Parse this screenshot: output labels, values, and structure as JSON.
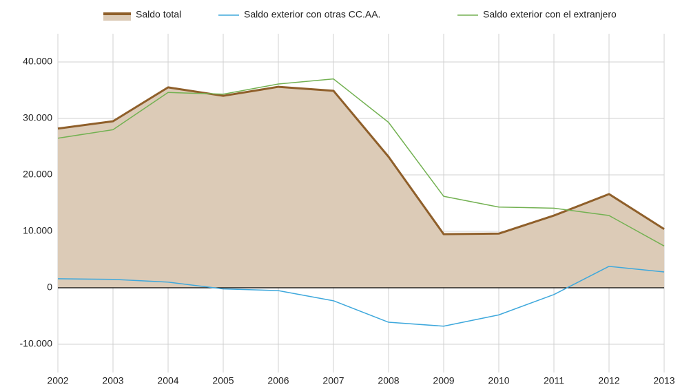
{
  "chart_data": {
    "type": "line",
    "categories": [
      "2002",
      "2003",
      "2004",
      "2005",
      "2006",
      "2007",
      "2008",
      "2009",
      "2010",
      "2011",
      "2012",
      "2013"
    ],
    "series": [
      {
        "name": "Saldo total",
        "color": "#8f5f2a",
        "fill": "#dccbb7",
        "values": [
          28200,
          29500,
          35500,
          34000,
          35600,
          34900,
          23200,
          9500,
          9600,
          12800,
          16600,
          10400
        ]
      },
      {
        "name": "Saldo exterior con otras CC.AA.",
        "color": "#3ea8dc",
        "values": [
          1600,
          1500,
          1000,
          -200,
          -500,
          -2300,
          -6100,
          -6800,
          -4800,
          -1200,
          3800,
          2800
        ]
      },
      {
        "name": "Saldo exterior con el extranjero",
        "color": "#73b152",
        "values": [
          26500,
          28000,
          34600,
          34300,
          36100,
          37000,
          29300,
          16200,
          14300,
          14100,
          12800,
          7400
        ]
      }
    ],
    "ylim": [
      -15000,
      45000
    ],
    "yticks": [
      {
        "value": -10000,
        "label": "-10.000"
      },
      0,
      {
        "value": 10000,
        "label": "10.000"
      },
      {
        "value": 20000,
        "label": "20.000"
      },
      {
        "value": 30000,
        "label": "30.000"
      },
      {
        "value": 40000,
        "label": "40.000"
      }
    ],
    "grid": true,
    "legend": "top-right"
  }
}
